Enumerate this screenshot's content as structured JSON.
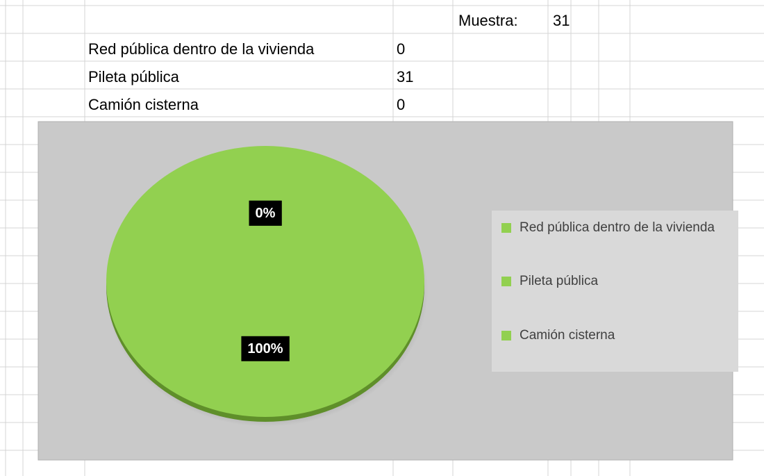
{
  "sheet": {
    "sample_label": "Muestra:",
    "sample_value": 31,
    "rows": [
      [
        "Red pública dentro de la vivienda",
        0
      ],
      [
        "Pileta pública",
        31
      ],
      [
        "Camión cisterna",
        0
      ]
    ]
  },
  "chart_data": {
    "type": "pie",
    "categories": [
      "Red pública dentro de la vivienda",
      "Pileta pública",
      "Camión cisterna"
    ],
    "values": [
      0,
      100,
      0
    ],
    "value_labels": [
      "0%",
      "100%",
      "0%"
    ],
    "colors": [
      "#92d050",
      "#92d050",
      "#92d050"
    ],
    "legend": "right"
  }
}
